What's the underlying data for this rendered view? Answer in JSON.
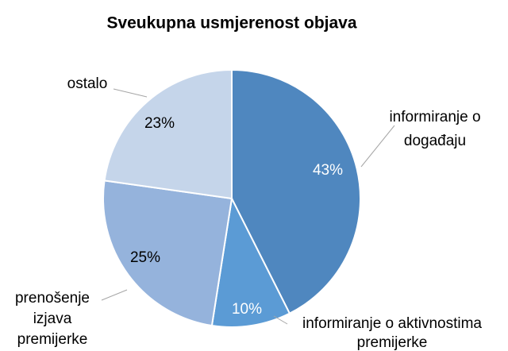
{
  "chart_data": {
    "type": "pie",
    "title": "Sveukupna usmjerenost objava",
    "categories": [
      "informiranje o\ndogađaju",
      "informiranje o aktivnostima\npremijerke",
      "prenošenje\nizjava\npremijerke",
      "ostalo"
    ],
    "values": [
      43,
      10,
      25,
      23
    ],
    "value_labels": [
      "43%",
      "10%",
      "25%",
      "23%"
    ],
    "colors": [
      "#4f87bf",
      "#5b9bd5",
      "#95b3dc",
      "#c5d5ea"
    ]
  }
}
